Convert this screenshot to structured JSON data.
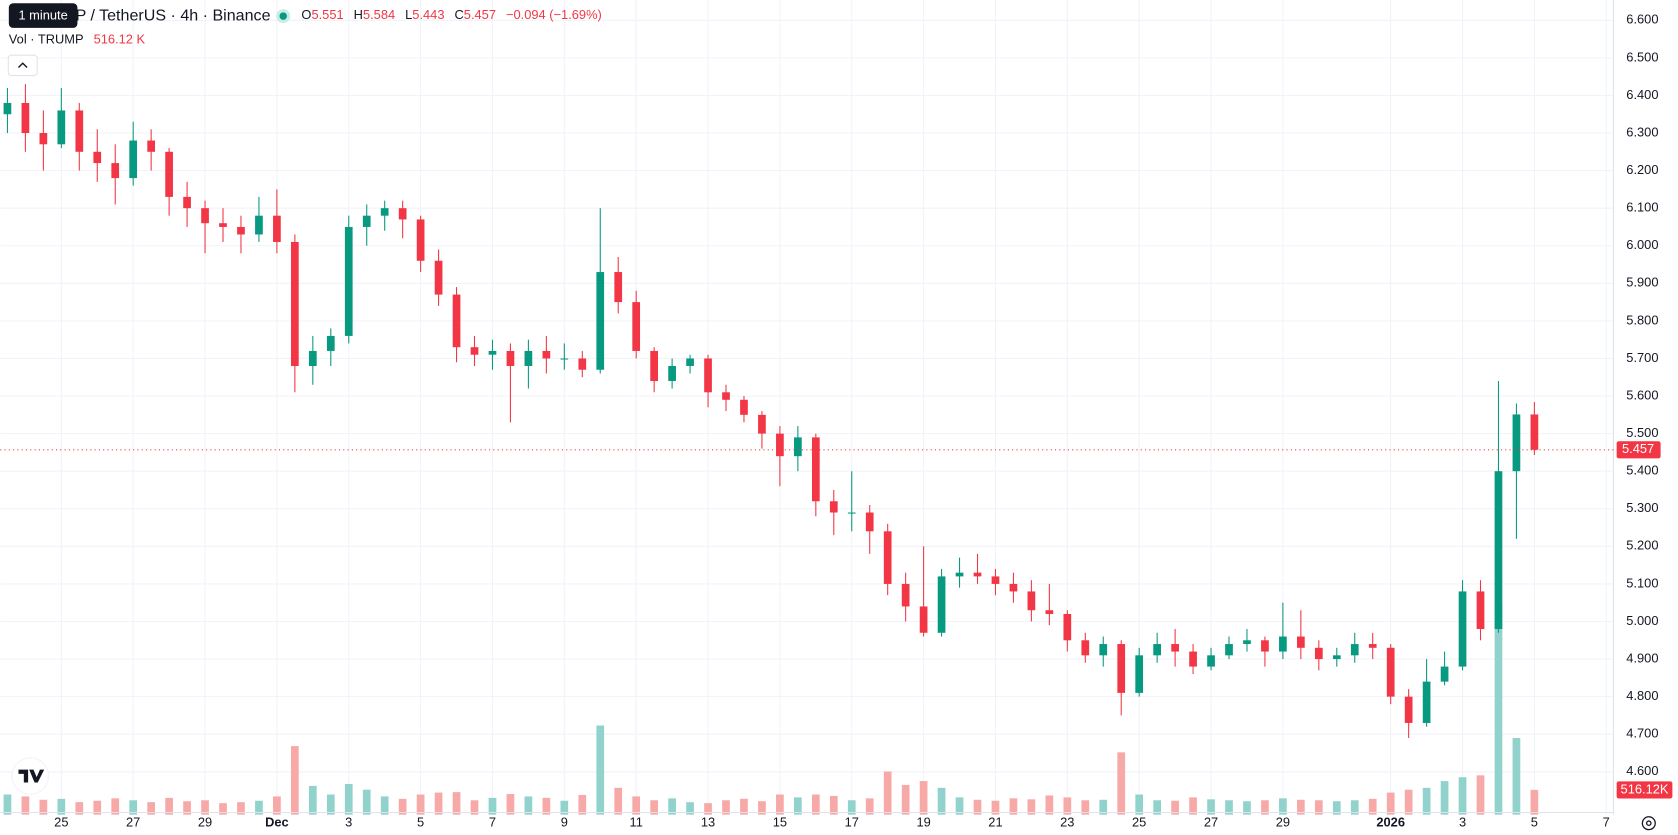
{
  "chart_data": {
    "type": "candlestick",
    "title": "TRUMP / TetherUS · 4h · Binance",
    "tooltip": "1 minute",
    "legend_keys": [
      "O",
      "H",
      "L",
      "C"
    ],
    "change_label": "−0.094 (−1.69%)",
    "volume_title": "Vol · TRUMP",
    "volume_legend_label": "516.12 K",
    "volume_axis_label": "516.12K",
    "up_color": "#089981",
    "down_color": "#f23645",
    "volume_up_color": "#92d2cc",
    "volume_down_color": "#f7a9a7",
    "xlim": [
      23.3,
      68.2
    ],
    "xticks": [
      25,
      27,
      29,
      {
        "value": 31,
        "label": "Dec",
        "major": true
      },
      {
        "value": 33,
        "label": "3"
      },
      {
        "value": 35,
        "label": "5"
      },
      {
        "value": 37,
        "label": "7"
      },
      {
        "value": 39,
        "label": "9"
      },
      {
        "value": 41,
        "label": "11"
      },
      {
        "value": 43,
        "label": "13"
      },
      {
        "value": 45,
        "label": "15"
      },
      {
        "value": 47,
        "label": "17"
      },
      {
        "value": 49,
        "label": "19"
      },
      {
        "value": 51,
        "label": "21"
      },
      {
        "value": 53,
        "label": "23"
      },
      {
        "value": 55,
        "label": "25"
      },
      {
        "value": 57,
        "label": "27"
      },
      {
        "value": 59,
        "label": "29"
      },
      {
        "value": 62,
        "label": "2026",
        "major": true
      },
      {
        "value": 64,
        "label": "3"
      },
      {
        "value": 66,
        "label": "5"
      },
      {
        "value": 68,
        "label": "7"
      }
    ],
    "ylim": [
      4.486,
      6.654
    ],
    "yticks": [
      {
        "value": 4.6,
        "label": "4.600"
      },
      {
        "value": 4.7,
        "label": "4.700"
      },
      {
        "value": 4.8,
        "label": "4.800"
      },
      {
        "value": 4.9,
        "label": "4.900"
      },
      {
        "value": 5.0,
        "label": "5.000"
      },
      {
        "value": 5.1,
        "label": "5.100"
      },
      {
        "value": 5.2,
        "label": "5.200"
      },
      {
        "value": 5.3,
        "label": "5.300"
      },
      {
        "value": 5.4,
        "label": "5.400"
      },
      {
        "value": 5.5,
        "label": "5.500"
      },
      {
        "value": 5.6,
        "label": "5.600"
      },
      {
        "value": 5.7,
        "label": "5.700"
      },
      {
        "value": 5.8,
        "label": "5.800"
      },
      {
        "value": 5.9,
        "label": "5.900"
      },
      {
        "value": 6.0,
        "label": "6.000"
      },
      {
        "value": 6.1,
        "label": "6.100"
      },
      {
        "value": 6.2,
        "label": "6.200"
      },
      {
        "value": 6.3,
        "label": "6.300"
      },
      {
        "value": 6.4,
        "label": "6.400"
      },
      {
        "value": 6.5,
        "label": "6.500"
      },
      {
        "value": 6.6,
        "label": "6.600"
      }
    ],
    "vlim": [
      0,
      17000
    ],
    "grid": true,
    "x": [
      23.5,
      24,
      24.5,
      25,
      25.5,
      26,
      26.5,
      27,
      27.5,
      28,
      28.5,
      29,
      29.5,
      30,
      30.5,
      31,
      31.5,
      32,
      32.5,
      33,
      33.5,
      34,
      34.5,
      35,
      35.5,
      36,
      36.5,
      37,
      37.5,
      38,
      38.5,
      39,
      39.5,
      40,
      40.5,
      41,
      41.5,
      42,
      42.5,
      43,
      43.5,
      44,
      44.5,
      45,
      45.5,
      46,
      46.5,
      47,
      47.5,
      48,
      48.5,
      49,
      49.5,
      50,
      50.5,
      51,
      51.5,
      52,
      52.5,
      53,
      53.5,
      54,
      54.5,
      55,
      55.5,
      56,
      56.5,
      57,
      57.5,
      58,
      58.5,
      59,
      59.5,
      60,
      60.5,
      61,
      61.5,
      62,
      62.5,
      63,
      63.5,
      64,
      64.5,
      65,
      65.5,
      66
    ],
    "candles": [
      [
        6.35,
        6.42,
        6.3,
        6.38
      ],
      [
        6.38,
        6.43,
        6.25,
        6.3
      ],
      [
        6.3,
        6.36,
        6.2,
        6.27
      ],
      [
        6.27,
        6.42,
        6.26,
        6.36
      ],
      [
        6.36,
        6.38,
        6.2,
        6.25
      ],
      [
        6.25,
        6.31,
        6.17,
        6.22
      ],
      [
        6.22,
        6.27,
        6.11,
        6.18
      ],
      [
        6.18,
        6.33,
        6.16,
        6.28
      ],
      [
        6.28,
        6.31,
        6.2,
        6.25
      ],
      [
        6.25,
        6.26,
        6.08,
        6.13
      ],
      [
        6.13,
        6.17,
        6.05,
        6.1
      ],
      [
        6.1,
        6.12,
        5.98,
        6.06
      ],
      [
        6.06,
        6.1,
        6.01,
        6.05
      ],
      [
        6.05,
        6.08,
        5.98,
        6.03
      ],
      [
        6.03,
        6.13,
        6.01,
        6.08
      ],
      [
        6.08,
        6.15,
        5.98,
        6.01
      ],
      [
        6.01,
        6.03,
        5.61,
        5.68
      ],
      [
        5.68,
        5.76,
        5.63,
        5.72
      ],
      [
        5.72,
        5.78,
        5.68,
        5.76
      ],
      [
        5.76,
        6.08,
        5.74,
        6.05
      ],
      [
        6.05,
        6.11,
        6.0,
        6.08
      ],
      [
        6.08,
        6.12,
        6.04,
        6.1
      ],
      [
        6.1,
        6.12,
        6.02,
        6.07
      ],
      [
        6.07,
        6.08,
        5.93,
        5.96
      ],
      [
        5.96,
        5.99,
        5.84,
        5.87
      ],
      [
        5.87,
        5.89,
        5.69,
        5.73
      ],
      [
        5.73,
        5.76,
        5.68,
        5.71
      ],
      [
        5.71,
        5.75,
        5.67,
        5.72
      ],
      [
        5.72,
        5.74,
        5.53,
        5.68
      ],
      [
        5.68,
        5.75,
        5.62,
        5.72
      ],
      [
        5.72,
        5.76,
        5.66,
        5.7
      ],
      [
        5.7,
        5.74,
        5.67,
        5.7
      ],
      [
        5.7,
        5.72,
        5.65,
        5.67
      ],
      [
        5.67,
        6.1,
        5.66,
        5.93
      ],
      [
        5.93,
        5.97,
        5.82,
        5.85
      ],
      [
        5.85,
        5.88,
        5.7,
        5.72
      ],
      [
        5.72,
        5.73,
        5.61,
        5.64
      ],
      [
        5.64,
        5.7,
        5.62,
        5.68
      ],
      [
        5.68,
        5.71,
        5.66,
        5.7
      ],
      [
        5.7,
        5.71,
        5.57,
        5.61
      ],
      [
        5.61,
        5.63,
        5.56,
        5.59
      ],
      [
        5.59,
        5.6,
        5.53,
        5.55
      ],
      [
        5.55,
        5.56,
        5.46,
        5.5
      ],
      [
        5.5,
        5.52,
        5.36,
        5.44
      ],
      [
        5.44,
        5.52,
        5.4,
        5.49
      ],
      [
        5.49,
        5.5,
        5.28,
        5.32
      ],
      [
        5.32,
        5.35,
        5.23,
        5.29
      ],
      [
        5.29,
        5.4,
        5.24,
        5.29
      ],
      [
        5.29,
        5.31,
        5.18,
        5.24
      ],
      [
        5.24,
        5.26,
        5.07,
        5.1
      ],
      [
        5.1,
        5.13,
        5.0,
        5.04
      ],
      [
        5.04,
        5.2,
        4.96,
        4.97
      ],
      [
        4.97,
        5.14,
        4.96,
        5.12
      ],
      [
        5.12,
        5.17,
        5.09,
        5.13
      ],
      [
        5.13,
        5.18,
        5.1,
        5.12
      ],
      [
        5.12,
        5.14,
        5.07,
        5.1
      ],
      [
        5.1,
        5.13,
        5.05,
        5.08
      ],
      [
        5.08,
        5.11,
        5.0,
        5.03
      ],
      [
        5.03,
        5.1,
        4.99,
        5.02
      ],
      [
        5.02,
        5.03,
        4.92,
        4.95
      ],
      [
        4.95,
        4.97,
        4.89,
        4.91
      ],
      [
        4.91,
        4.96,
        4.88,
        4.94
      ],
      [
        4.94,
        4.95,
        4.75,
        4.81
      ],
      [
        4.81,
        4.93,
        4.8,
        4.91
      ],
      [
        4.91,
        4.97,
        4.89,
        4.94
      ],
      [
        4.94,
        4.98,
        4.88,
        4.92
      ],
      [
        4.92,
        4.94,
        4.86,
        4.88
      ],
      [
        4.88,
        4.93,
        4.87,
        4.91
      ],
      [
        4.91,
        4.96,
        4.9,
        4.94
      ],
      [
        4.94,
        4.98,
        4.92,
        4.95
      ],
      [
        4.95,
        4.96,
        4.88,
        4.92
      ],
      [
        4.92,
        5.05,
        4.9,
        4.96
      ],
      [
        4.96,
        5.03,
        4.9,
        4.93
      ],
      [
        4.93,
        4.95,
        4.87,
        4.9
      ],
      [
        4.9,
        4.93,
        4.88,
        4.91
      ],
      [
        4.91,
        4.97,
        4.89,
        4.94
      ],
      [
        4.94,
        4.97,
        4.9,
        4.93
      ],
      [
        4.93,
        4.94,
        4.78,
        4.8
      ],
      [
        4.8,
        4.82,
        4.69,
        4.73
      ],
      [
        4.73,
        4.9,
        4.72,
        4.84
      ],
      [
        4.84,
        4.92,
        4.83,
        4.88
      ],
      [
        4.88,
        5.11,
        4.87,
        5.08
      ],
      [
        5.08,
        5.11,
        4.95,
        4.98
      ],
      [
        4.98,
        5.64,
        4.97,
        5.4
      ],
      [
        5.4,
        5.58,
        5.22,
        5.551
      ],
      [
        5.551,
        5.584,
        5.443,
        5.457
      ]
    ],
    "volume": [
      420,
      380,
      310,
      330,
      260,
      290,
      340,
      300,
      260,
      350,
      280,
      300,
      240,
      260,
      290,
      380,
      1430,
      600,
      420,
      640,
      520,
      380,
      330,
      420,
      460,
      470,
      300,
      350,
      430,
      380,
      350,
      290,
      410,
      1860,
      560,
      380,
      300,
      340,
      260,
      240,
      300,
      330,
      280,
      420,
      360,
      420,
      390,
      300,
      340,
      900,
      620,
      700,
      560,
      360,
      310,
      290,
      340,
      320,
      400,
      360,
      300,
      310,
      1300,
      420,
      300,
      290,
      360,
      320,
      300,
      280,
      300,
      340,
      310,
      300,
      280,
      300,
      330,
      460,
      520,
      560,
      700,
      780,
      820,
      4370,
      1600,
      516.12
    ]
  }
}
